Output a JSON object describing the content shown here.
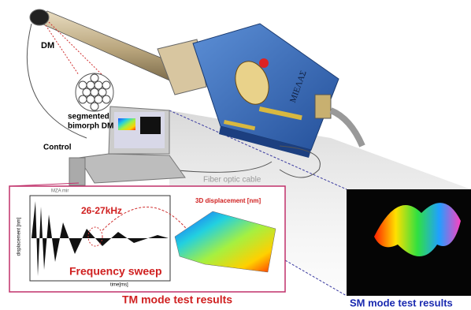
{
  "labels": {
    "dm": "DM",
    "segmented": "segmented",
    "bimorph": "bimorph DM",
    "control": "Control",
    "fiber": "Fiber optic cable",
    "device": "MIΕΛΑΣ",
    "screen": "MZA mir",
    "y_axis": "displacement [nm]",
    "x_axis": "time[ms]",
    "freq_band": "26-27kHz",
    "surface_title": "3D displacement [nm]",
    "sweep": "Frequency sweep",
    "tm_results": "TM mode test results",
    "sm_results": "SM mode test results"
  }
}
